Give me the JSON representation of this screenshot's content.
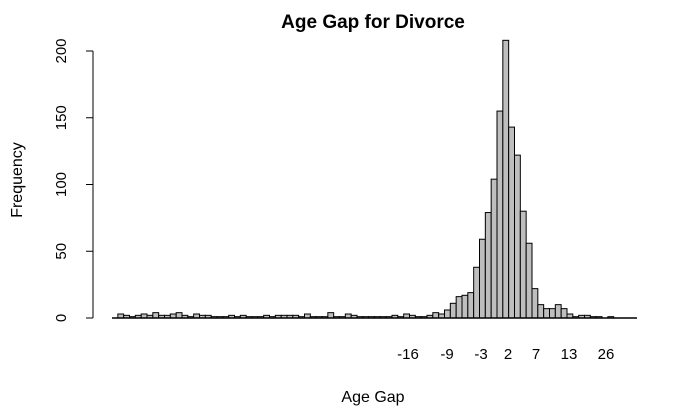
{
  "chart_data": {
    "type": "bar",
    "title": "Age Gap for Divorce",
    "xlabel": "Age Gap",
    "ylabel": "Frequency",
    "ylim": [
      0,
      210
    ],
    "yticks": [
      0,
      50,
      100,
      150,
      200
    ],
    "xtick_labels": [
      "-16",
      "-9",
      "-3",
      "2",
      "7",
      "13",
      "26"
    ],
    "bar_color": "#bebebe",
    "grid": false,
    "legend": "none",
    "values": [
      0,
      3,
      2,
      1,
      2,
      3,
      2,
      4,
      2,
      2,
      3,
      4,
      2,
      1,
      3,
      2,
      2,
      1,
      1,
      1,
      2,
      1,
      2,
      1,
      1,
      1,
      2,
      1,
      2,
      2,
      2,
      2,
      1,
      3,
      1,
      1,
      1,
      4,
      1,
      1,
      3,
      2,
      1,
      1,
      1,
      1,
      1,
      1,
      2,
      1,
      3,
      2,
      1,
      1,
      2,
      4,
      3,
      6,
      11,
      16,
      17,
      19,
      38,
      59,
      79,
      104,
      155,
      208,
      143,
      122,
      80,
      56,
      22,
      10,
      7,
      7,
      10,
      7,
      3,
      1,
      2,
      2,
      1,
      1,
      0,
      1,
      0,
      0,
      0,
      0
    ]
  }
}
